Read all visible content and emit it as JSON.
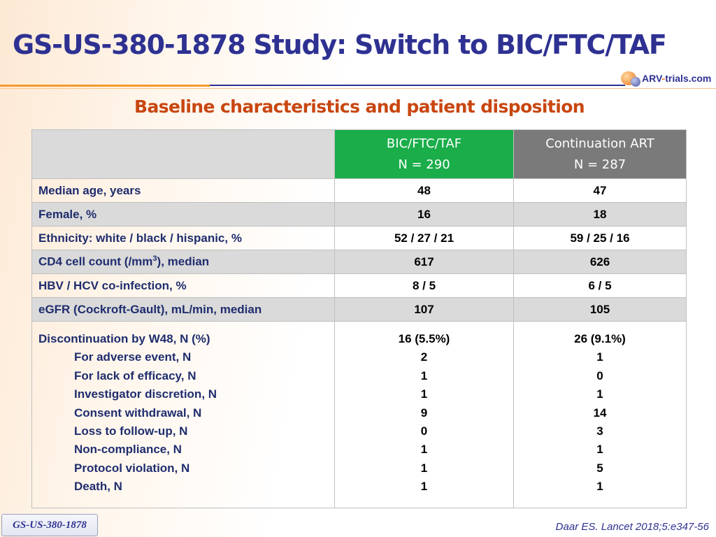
{
  "title": "GS-US-380-1878 Study: Switch to BIC/FTC/TAF",
  "logo": {
    "text_a": "ARV",
    "text_dash": "-",
    "text_b": "trials.com"
  },
  "subtitle": "Baseline characteristics and patient disposition",
  "table": {
    "headers": [
      {
        "line1": "BIC/FTC/TAF",
        "line2": "N = 290"
      },
      {
        "line1": "Continuation ART",
        "line2": "N = 287"
      }
    ],
    "rows": [
      {
        "label": "Median age, years",
        "a": "48",
        "b": "47"
      },
      {
        "label": "Female, %",
        "a": "16",
        "b": "18"
      },
      {
        "label": "Ethnicity: white / black / hispanic, %",
        "a": "52 / 27 / 21",
        "b": "59 / 25 / 16"
      },
      {
        "label_pre": "CD4 cell count (/mm",
        "label_sup": "3",
        "label_post": "), median",
        "a": "617",
        "b": "626"
      },
      {
        "label": "HBV / HCV co-infection, %",
        "a": "8 / 5",
        "b": "6 / 5"
      },
      {
        "label": "eGFR (Cockroft-Gault), mL/min, median",
        "a": "107",
        "b": "105"
      }
    ],
    "discontinuation": [
      {
        "label": "Discontinuation by W48, N (%)",
        "a": "16 (5.5%)",
        "b": "26 (9.1%)"
      },
      {
        "label": "For adverse event, N",
        "a": "2",
        "b": "1"
      },
      {
        "label": "For lack of efficacy, N",
        "a": "1",
        "b": "0"
      },
      {
        "label": "Investigator discretion, N",
        "a": "1",
        "b": "1"
      },
      {
        "label": "Consent withdrawal, N",
        "a": "9",
        "b": "14"
      },
      {
        "label": "Loss to follow-up, N",
        "a": "0",
        "b": "3"
      },
      {
        "label": "Non-compliance, N",
        "a": "1",
        "b": "1"
      },
      {
        "label": "Protocol violation, N",
        "a": "1",
        "b": "5"
      },
      {
        "label": "Death, N",
        "a": "1",
        "b": "1"
      }
    ]
  },
  "footer_tag": "GS-US-380-1878",
  "reference": "Daar ES. Lancet 2018;5:e347-56",
  "colors": {
    "title": "#2e3192",
    "subtitle": "#c8460f",
    "header_green": "#1aad4a",
    "header_gray": "#7a7a7a",
    "row_shade": "#dadada"
  }
}
